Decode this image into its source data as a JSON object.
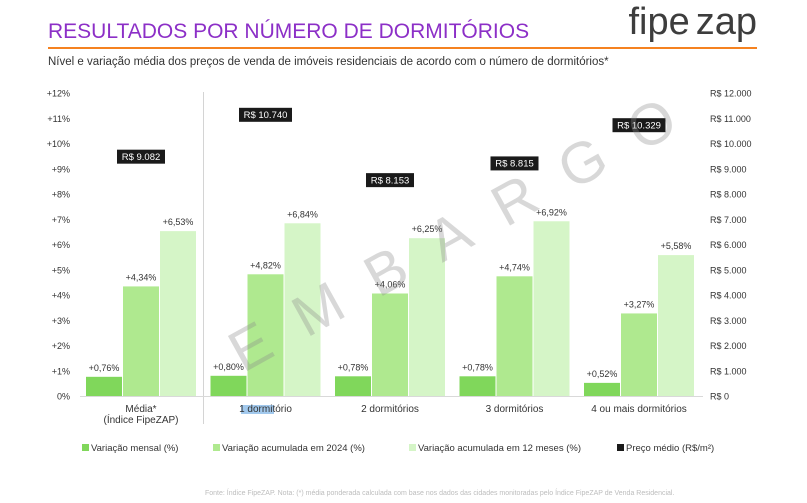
{
  "header": {
    "title": "RESULTADOS POR NÚMERO DE DORMITÓRIOS",
    "subtitle": "Nível e variação média dos preços de venda de imóveis residenciais de acordo com o número de dormitórios*"
  },
  "logo": {
    "part1": "fipe",
    "part2": "zap"
  },
  "watermark": "EMBARGO",
  "footer": {
    "note": "Fonte: Índice FipeZAP. Nota: (*) média ponderada calculada com base nos dados das cidades monitoradas pelo Índice FipeZAP de Venda Residencial."
  },
  "colors": {
    "title": "#8c2fc7",
    "accent_line": "#f58220"
  },
  "chart_data": {
    "type": "bar",
    "categories": [
      "Média*\n(Índice FipeZAP)",
      "1 dormitório",
      "2 dormitórios",
      "3 dormitórios",
      "4 ou mais dormitórios"
    ],
    "series": [
      {
        "name": "Variação mensal (%)",
        "type": "bar",
        "axis": "left",
        "color": "#80d75b",
        "values": [
          0.76,
          0.8,
          0.78,
          0.78,
          0.52
        ],
        "labels": [
          "+0,76%",
          "+0,80%",
          "+0,78%",
          "+0,78%",
          "+0,52%"
        ]
      },
      {
        "name": "Variação acumulada em 2024 (%)",
        "type": "bar",
        "axis": "left",
        "color": "#afe98f",
        "values": [
          4.34,
          4.82,
          4.06,
          4.74,
          3.27
        ],
        "labels": [
          "+4,34%",
          "+4,82%",
          "+4,06%",
          "+4,74%",
          "+3,27%"
        ]
      },
      {
        "name": "Variação acumulada em 12 meses (%)",
        "type": "bar",
        "axis": "left",
        "color": "#d5f5c7",
        "values": [
          6.53,
          6.84,
          6.25,
          6.92,
          5.58
        ],
        "labels": [
          "+6,53%",
          "+6,84%",
          "+6,25%",
          "+6,92%",
          "+5,58%"
        ]
      },
      {
        "name": "Preço médio (R$/m²)",
        "type": "label",
        "axis": "right",
        "color": "#1a1a1a",
        "values": [
          9082,
          10740,
          8153,
          8815,
          10329
        ],
        "labels": [
          "R$ 9.082",
          "R$ 10.740",
          "R$ 8.153",
          "R$ 8.815",
          "R$ 10.329"
        ]
      }
    ],
    "ylim": [
      0,
      12
    ],
    "y2lim": [
      0,
      12000
    ],
    "y_ticks": [
      "0%",
      "+1%",
      "+2%",
      "+3%",
      "+4%",
      "+5%",
      "+6%",
      "+7%",
      "+8%",
      "+9%",
      "+10%",
      "+11%",
      "+12%"
    ],
    "y2_ticks": [
      "R$ 0",
      "R$ 1.000",
      "R$ 2.000",
      "R$ 3.000",
      "R$ 4.000",
      "R$ 5.000",
      "R$ 6.000",
      "R$ 7.000",
      "R$ 8.000",
      "R$ 9.000",
      "R$ 10.000",
      "R$ 11.000",
      "R$ 12.000"
    ],
    "legend_position": "bottom",
    "grid": false
  }
}
